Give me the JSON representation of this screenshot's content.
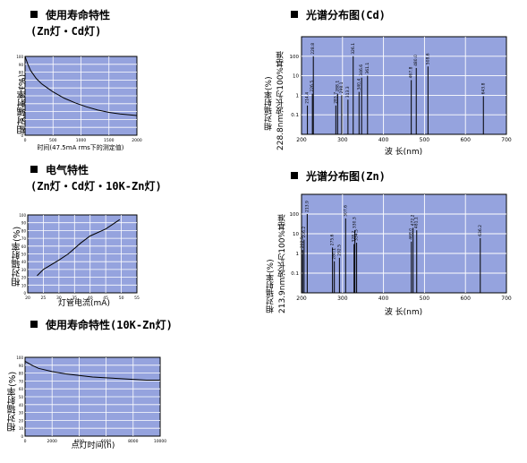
{
  "headers": {
    "life_zn_cd": "使用寿命特性",
    "life_zn_cd_sub": "(Zn灯・Cd灯)",
    "electric": "电气特性",
    "electric_sub": "(Zn灯・Cd灯・10K-Zn灯)",
    "life_10k": "使用寿命特性(10K-Zn灯)",
    "spec_cd": "光谱分布图(Cd)",
    "spec_zn": "光谱分布图(Zn)"
  },
  "chart_data": [
    {
      "id": "life_zn_cd",
      "type": "line",
      "xlabel": "时间(47.5mA rms下的测定值)",
      "ylabel": "相对辐射率(%)",
      "xlim": [
        0,
        2000
      ],
      "ylim": [
        0,
        100
      ],
      "xticks": [
        "0",
        "500",
        "1000",
        "1500",
        "2000"
      ],
      "yticks": [
        "0",
        "10",
        "20",
        "30",
        "40",
        "50",
        "60",
        "70",
        "80",
        "90",
        "100"
      ],
      "grid": true,
      "x": [
        0,
        50,
        100,
        200,
        300,
        400,
        500,
        700,
        900,
        1100,
        1300,
        1500,
        1700,
        2000
      ],
      "y": [
        100,
        90,
        82,
        72,
        65,
        60,
        55,
        47,
        41,
        36,
        32,
        29,
        27,
        25
      ]
    },
    {
      "id": "electric",
      "type": "line",
      "xlabel": "灯管电流(mA)",
      "ylabel": "相对辐射率(%)",
      "xlim": [
        20,
        55
      ],
      "ylim": [
        0,
        100
      ],
      "xticks": [
        "20",
        "25",
        "30",
        "35",
        "40",
        "45",
        "50",
        "55"
      ],
      "yticks": [
        "0",
        "10",
        "20",
        "30",
        "40",
        "50",
        "60",
        "70",
        "80",
        "90",
        "100"
      ],
      "grid": true,
      "x": [
        23,
        25,
        30,
        33,
        37,
        40,
        45,
        49.5
      ],
      "y": [
        22,
        30,
        42,
        50,
        64,
        73,
        82,
        94
      ]
    },
    {
      "id": "life_10k",
      "type": "line",
      "xlabel": "点灯时间(h)",
      "ylabel": "相对辐射率(%)",
      "xlim": [
        0,
        10000
      ],
      "ylim": [
        0,
        100
      ],
      "xticks": [
        "0",
        "2000",
        "4000",
        "6000",
        "8000",
        "10000"
      ],
      "yticks": [
        "0",
        "10",
        "20",
        "30",
        "40",
        "50",
        "60",
        "70",
        "80",
        "90",
        "100"
      ],
      "grid": true,
      "x": [
        0,
        500,
        1000,
        2000,
        3000,
        4000,
        5000,
        6000,
        7000,
        8000,
        9000,
        10000
      ],
      "y": [
        95,
        90,
        86,
        82,
        79,
        77,
        75,
        74,
        73,
        72,
        71,
        71
      ]
    },
    {
      "id": "spec_cd",
      "type": "bar",
      "scale": "log",
      "xlabel": "波 长(nm)",
      "ylabel": "相对辐射率(%)",
      "ylabel2": "228.8nm波长为100%基准",
      "xlim": [
        200,
        700
      ],
      "ylim": [
        0.01,
        1000
      ],
      "xticks": [
        "200",
        "300",
        "400",
        "500",
        "600",
        "700"
      ],
      "yticks": [
        "0.1",
        "1",
        "10",
        "100"
      ],
      "grid": true,
      "lines": [
        {
          "x": 214.4,
          "y": 0.3,
          "label": "214.4"
        },
        {
          "x": 226.5,
          "y": 1.2,
          "label": "226.5"
        },
        {
          "x": 228.8,
          "y": 100,
          "label": "228.8"
        },
        {
          "x": 283.7,
          "y": 0.3,
          "label": "283.7"
        },
        {
          "x": 288.1,
          "y": 1.2,
          "label": "288.1"
        },
        {
          "x": 298.1,
          "y": 1.0,
          "label": "298.1"
        },
        {
          "x": 313.3,
          "y": 0.6,
          "label": "313.3"
        },
        {
          "x": 326.1,
          "y": 100,
          "label": "326.1"
        },
        {
          "x": 340.4,
          "y": 1.5,
          "label": "340.4"
        },
        {
          "x": 346.6,
          "y": 8.0,
          "label": "346.6"
        },
        {
          "x": 361.1,
          "y": 10,
          "label": "361.1"
        },
        {
          "x": 467.8,
          "y": 6.0,
          "label": "467.8"
        },
        {
          "x": 480.0,
          "y": 25,
          "label": "480.0"
        },
        {
          "x": 508.6,
          "y": 30,
          "label": "508.6"
        },
        {
          "x": 643.8,
          "y": 0.9,
          "label": "643.8"
        }
      ]
    },
    {
      "id": "spec_zn",
      "type": "bar",
      "scale": "log",
      "xlabel": "波 长(nm)",
      "ylabel": "相对辐射率(%)",
      "ylabel2": "213.9nm波长为100%基准",
      "xlim": [
        200,
        700
      ],
      "ylim": [
        0.01,
        1000
      ],
      "xticks": [
        "200",
        "300",
        "400",
        "500",
        "600",
        "700"
      ],
      "yticks": [
        "0.1",
        "1",
        "10",
        "100"
      ],
      "grid": true,
      "lines": [
        {
          "x": 202.5,
          "y": 1.5,
          "label": "202.5"
        },
        {
          "x": 206.2,
          "y": 5.0,
          "label": "206.2"
        },
        {
          "x": 213.9,
          "y": 100,
          "label": "213.9"
        },
        {
          "x": 275.6,
          "y": 2.0,
          "label": "275.6"
        },
        {
          "x": 280.1,
          "y": 0.4,
          "label": "280.1"
        },
        {
          "x": 292.5,
          "y": 0.6,
          "label": "292.5"
        },
        {
          "x": 307.6,
          "y": 60,
          "label": "307.6"
        },
        {
          "x": 328.2,
          "y": 3.0,
          "label": "328.2"
        },
        {
          "x": 330.3,
          "y": 15,
          "label": "330.3"
        },
        {
          "x": 334.5,
          "y": 3.5,
          "label": "334.5"
        },
        {
          "x": 468.0,
          "y": 4.0,
          "label": "468.0"
        },
        {
          "x": 472.2,
          "y": 20,
          "label": "472.2"
        },
        {
          "x": 481.1,
          "y": 15,
          "label": "481.1"
        },
        {
          "x": 636.2,
          "y": 6.0,
          "label": "636.2"
        }
      ]
    }
  ]
}
